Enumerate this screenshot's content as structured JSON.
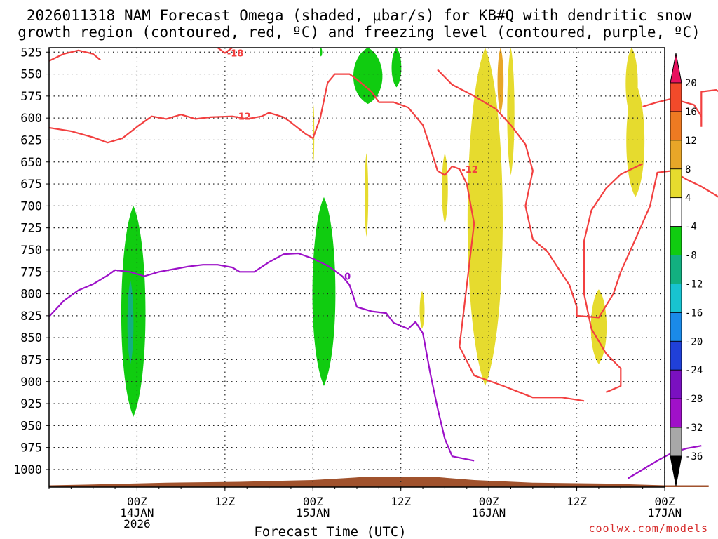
{
  "title_line1": "2026011318 NAM Forecast Omega (shaded, μbar/s) for KB#Q with dendritic snow",
  "title_line2": "growth region (contoured, red, ºC) and freezing level (contoured, purple, ºC)",
  "credit": "coolwx.com/models",
  "chart_data": {
    "type": "heatmap",
    "xlabel": "Forecast Time (UTC)",
    "ylabel": "Pressure (mb)",
    "x_unit": "forecast hour",
    "xlim": [
      -6,
      78
    ],
    "ylim": [
      1020,
      520
    ],
    "y_ticks": [
      525,
      550,
      575,
      600,
      625,
      650,
      675,
      700,
      725,
      750,
      775,
      800,
      825,
      850,
      875,
      900,
      925,
      950,
      975,
      1000
    ],
    "x_ticks": [
      {
        "x": 6,
        "label": "00Z",
        "sub": "14JAN",
        "sub2": "2026"
      },
      {
        "x": 18,
        "label": "12Z",
        "sub": "",
        "sub2": ""
      },
      {
        "x": 30,
        "label": "00Z",
        "sub": "15JAN",
        "sub2": ""
      },
      {
        "x": 42,
        "label": "12Z",
        "sub": "",
        "sub2": ""
      },
      {
        "x": 54,
        "label": "00Z",
        "sub": "16JAN",
        "sub2": ""
      },
      {
        "x": 66,
        "label": "12Z",
        "sub": "",
        "sub2": ""
      },
      {
        "x": 78,
        "label": "00Z",
        "sub": "17JAN",
        "sub2": ""
      }
    ],
    "colorbar": {
      "labels": [
        "20",
        "16",
        "12",
        "8",
        "4",
        "-4",
        "-8",
        "-12",
        "-16",
        "-20",
        "-24",
        "-28",
        "-32",
        "-36"
      ],
      "colors": [
        "#e8125f",
        "#f24a2a",
        "#ee7a22",
        "#e8a628",
        "#e6db2e",
        "#ffffff",
        "#10cc10",
        "#12b080",
        "#18c3d0",
        "#1a8ae8",
        "#2040d8",
        "#7a10c0",
        "#a010c8",
        "#a8a8a8",
        "#000000"
      ]
    },
    "series": [
      {
        "name": "Freezing level 0 C",
        "color": "#9c10c8",
        "label": "0",
        "points": [
          [
            -6,
            826
          ],
          [
            -4,
            808
          ],
          [
            -2,
            796
          ],
          [
            0,
            789
          ],
          [
            2,
            779
          ],
          [
            3,
            773
          ],
          [
            5,
            775
          ],
          [
            7,
            780
          ],
          [
            9,
            775
          ],
          [
            11,
            772
          ],
          [
            13,
            769
          ],
          [
            15,
            767
          ],
          [
            17,
            767
          ],
          [
            19,
            770
          ],
          [
            20,
            775
          ],
          [
            22,
            775
          ],
          [
            24,
            764
          ],
          [
            26,
            755
          ],
          [
            28,
            754
          ],
          [
            30,
            760
          ],
          [
            32,
            768
          ],
          [
            34,
            780
          ],
          [
            35,
            790
          ],
          [
            36,
            815
          ],
          [
            38,
            820
          ],
          [
            40,
            822
          ],
          [
            41,
            833
          ],
          [
            43,
            840
          ],
          [
            44,
            832
          ],
          [
            45,
            845
          ],
          [
            46,
            890
          ],
          [
            47,
            930
          ],
          [
            48,
            965
          ],
          [
            49,
            985
          ],
          [
            52,
            990
          ]
        ]
      },
      {
        "name": "Freezing level 0 C (late)",
        "color": "#9c10c8",
        "label": "",
        "points": [
          [
            73,
            1010
          ],
          [
            75,
            1000
          ],
          [
            77,
            990
          ],
          [
            79,
            981
          ],
          [
            81,
            976
          ],
          [
            83,
            973
          ]
        ]
      },
      {
        "name": "-12 C contour",
        "color": "#f24040",
        "label": "-12",
        "points": [
          [
            -6,
            611
          ],
          [
            -3,
            615
          ],
          [
            0,
            622
          ],
          [
            2,
            628
          ],
          [
            4,
            623
          ],
          [
            6,
            610
          ],
          [
            8,
            598
          ],
          [
            10,
            601
          ],
          [
            12,
            596
          ],
          [
            14,
            601
          ],
          [
            16,
            599
          ],
          [
            19,
            598
          ],
          [
            21,
            601
          ],
          [
            23,
            598
          ],
          [
            24,
            594
          ],
          [
            26,
            599
          ],
          [
            27,
            605
          ],
          [
            29,
            618
          ],
          [
            30,
            623
          ]
        ]
      },
      {
        "name": "-12 C contour (main)",
        "color": "#f24040",
        "label": "-12",
        "points": [
          [
            30,
            623
          ],
          [
            31,
            600
          ],
          [
            32,
            560
          ],
          [
            33,
            550
          ],
          [
            35,
            550
          ],
          [
            36,
            556
          ],
          [
            38,
            570
          ],
          [
            39,
            582
          ],
          [
            41,
            582
          ],
          [
            43,
            588
          ],
          [
            45,
            608
          ],
          [
            46,
            633
          ],
          [
            47,
            660
          ],
          [
            48,
            665
          ],
          [
            49,
            655
          ],
          [
            50,
            658
          ],
          [
            51,
            675
          ],
          [
            52,
            720
          ],
          [
            51,
            790
          ],
          [
            50,
            860
          ],
          [
            52,
            893
          ],
          [
            56,
            905
          ],
          [
            60,
            918
          ],
          [
            64,
            918
          ],
          [
            67,
            922
          ]
        ]
      },
      {
        "name": "-12 C contour (east)",
        "color": "#f24040",
        "label": "",
        "points": [
          [
            47,
            545
          ],
          [
            49,
            562
          ],
          [
            52,
            575
          ],
          [
            55,
            590
          ],
          [
            57,
            608
          ],
          [
            59,
            630
          ],
          [
            60,
            660
          ],
          [
            59,
            700
          ],
          [
            60,
            738
          ],
          [
            62,
            752
          ],
          [
            63,
            765
          ],
          [
            65,
            790
          ],
          [
            66,
            815
          ],
          [
            66,
            825
          ],
          [
            69,
            827
          ],
          [
            71,
            800
          ],
          [
            72,
            775
          ],
          [
            74,
            738
          ],
          [
            76,
            700
          ],
          [
            77,
            662
          ],
          [
            79,
            660
          ],
          [
            81,
            670
          ],
          [
            83,
            678
          ],
          [
            85,
            688
          ],
          [
            87,
            700
          ],
          [
            89,
            715
          ]
        ]
      },
      {
        "name": "-12 C contour (loop)",
        "color": "#f24040",
        "label": "",
        "points": [
          [
            75,
            652
          ],
          [
            72,
            664
          ],
          [
            70,
            680
          ],
          [
            68,
            705
          ],
          [
            67,
            740
          ],
          [
            67,
            800
          ],
          [
            68,
            840
          ],
          [
            70,
            868
          ],
          [
            72,
            885
          ],
          [
            72,
            905
          ],
          [
            70,
            912
          ]
        ]
      },
      {
        "name": "-18 C contour",
        "color": "#f24040",
        "label": "-18",
        "points": [
          [
            17,
            520
          ],
          [
            18,
            526
          ],
          [
            19,
            520
          ]
        ]
      },
      {
        "name": "-18 C contour (upper)",
        "color": "#f24040",
        "label": "",
        "points": [
          [
            -6,
            535
          ],
          [
            -4,
            527
          ],
          [
            -2,
            523
          ],
          [
            0,
            527
          ],
          [
            1,
            534
          ]
        ]
      },
      {
        "name": "-12 C contour (NE)",
        "color": "#f24040",
        "label": "",
        "points": [
          [
            83,
            610
          ],
          [
            83,
            580
          ],
          [
            83,
            570
          ],
          [
            85,
            568
          ],
          [
            86,
            573
          ],
          [
            87,
            590
          ],
          [
            89,
            591
          ],
          [
            90,
            580
          ]
        ]
      },
      {
        "name": "-12 C contour (top)",
        "color": "#f24040",
        "label": "",
        "points": [
          [
            75,
            587
          ],
          [
            77,
            582
          ],
          [
            79,
            578
          ],
          [
            82,
            585
          ],
          [
            83,
            598
          ]
        ]
      }
    ],
    "shaded": [
      {
        "band": "-4 to -8",
        "color": "#10cc10",
        "regions": [
          {
            "x": 3.5,
            "x2": 7.5,
            "p_top": 700,
            "p_bot": 940
          },
          {
            "x": 29.6,
            "x2": 33.4,
            "p_top": 690,
            "p_bot": 905
          },
          {
            "x": 35.1,
            "x2": 39.9,
            "p_top": 520,
            "p_bot": 584
          },
          {
            "x": 40.6,
            "x2": 42.2,
            "p_top": 520,
            "p_bot": 565
          },
          {
            "x": 30.9,
            "x2": 31.3,
            "p_top": 520,
            "p_bot": 530
          }
        ]
      },
      {
        "band": "-8 to -12",
        "color": "#12b080",
        "regions": [
          {
            "x": 4.6,
            "x2": 5.6,
            "p_top": 785,
            "p_bot": 880
          }
        ]
      },
      {
        "band": "4 to 8",
        "color": "#e6db2e",
        "regions": [
          {
            "x": 50.6,
            "x2": 56.4,
            "p_top": 520,
            "p_bot": 905
          },
          {
            "x": 56.4,
            "x2": 57.6,
            "p_top": 520,
            "p_bot": 665
          },
          {
            "x": 72.5,
            "x2": 74.5,
            "p_top": 520,
            "p_bot": 600
          },
          {
            "x": 72.5,
            "x2": 75.5,
            "p_top": 560,
            "p_bot": 690
          },
          {
            "x": 67.7,
            "x2": 70.3,
            "p_top": 795,
            "p_bot": 880
          },
          {
            "x": 30.0,
            "x2": 30.2,
            "p_top": 585,
            "p_bot": 650
          },
          {
            "x": 37.0,
            "x2": 37.6,
            "p_top": 640,
            "p_bot": 735
          },
          {
            "x": 47.5,
            "x2": 48.5,
            "p_top": 640,
            "p_bot": 720
          },
          {
            "x": 44.5,
            "x2": 45.3,
            "p_top": 797,
            "p_bot": 840
          }
        ]
      },
      {
        "band": "8 to 12",
        "color": "#e8a628",
        "regions": [
          {
            "x": 55.1,
            "x2": 56.1,
            "p_top": 520,
            "p_bot": 595
          }
        ]
      }
    ],
    "terrain": {
      "color": "#a0522d",
      "points": [
        [
          -6,
          1018
        ],
        [
          0,
          1017
        ],
        [
          10,
          1015
        ],
        [
          20,
          1014
        ],
        [
          30,
          1012
        ],
        [
          38,
          1008
        ],
        [
          46,
          1008
        ],
        [
          52,
          1012
        ],
        [
          60,
          1015
        ],
        [
          70,
          1016
        ],
        [
          78,
          1018
        ],
        [
          84,
          1018
        ],
        [
          84,
          1020
        ],
        [
          -6,
          1020
        ]
      ]
    }
  }
}
